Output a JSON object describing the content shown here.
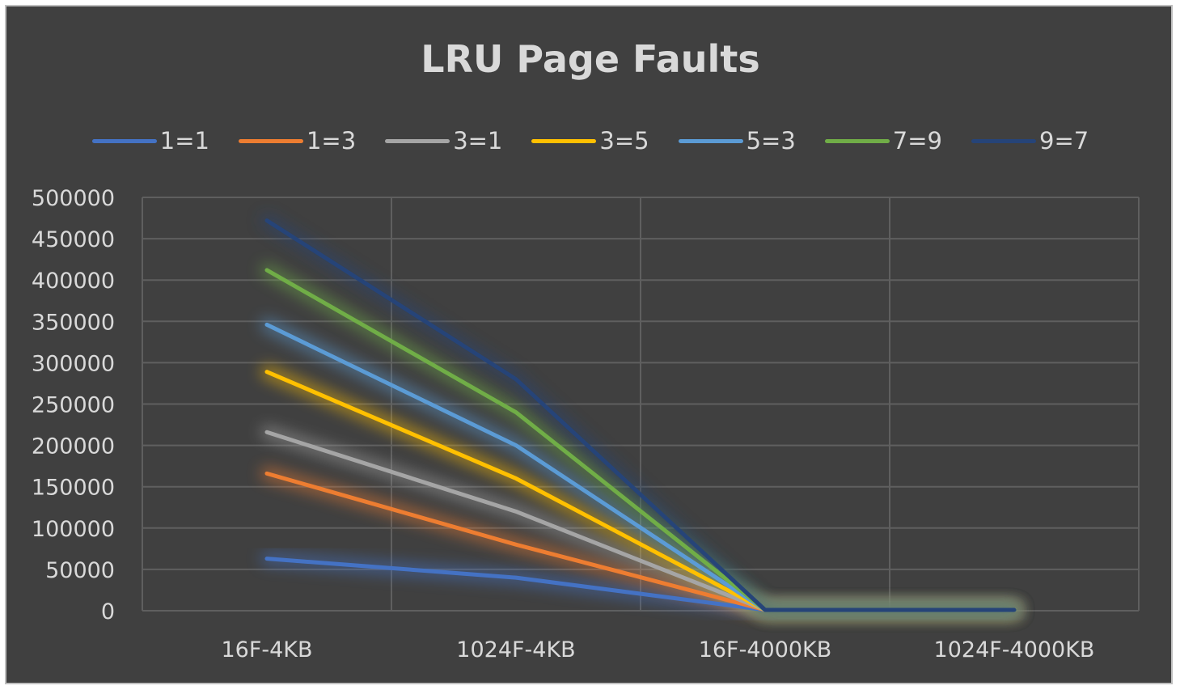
{
  "chart_data": {
    "type": "line",
    "title": "LRU Page Faults",
    "xlabel": "",
    "ylabel": "",
    "categories": [
      "16F-4KB",
      "1024F-4KB",
      "16F-4000KB",
      "1024F-4000KB"
    ],
    "ylim": [
      0,
      500000
    ],
    "yticks": [
      0,
      50000,
      100000,
      150000,
      200000,
      250000,
      300000,
      350000,
      400000,
      450000,
      500000
    ],
    "grid": true,
    "legend_position": "top",
    "series": [
      {
        "name": "1=1",
        "color": "#4472c4",
        "values": [
          63000,
          40000,
          1000,
          1000
        ]
      },
      {
        "name": "1=3",
        "color": "#ed7d31",
        "values": [
          166000,
          80000,
          1000,
          1000
        ]
      },
      {
        "name": "3=1",
        "color": "#a5a5a5",
        "values": [
          216000,
          120000,
          1000,
          1000
        ]
      },
      {
        "name": "3=5",
        "color": "#ffc000",
        "values": [
          289000,
          160000,
          1000,
          1000
        ]
      },
      {
        "name": "5=3",
        "color": "#5b9bd5",
        "values": [
          346000,
          200000,
          1000,
          1000
        ]
      },
      {
        "name": "7=9",
        "color": "#70ad47",
        "values": [
          412000,
          240000,
          1000,
          1000
        ]
      },
      {
        "name": "9=7",
        "color": "#264478",
        "values": [
          472000,
          280000,
          1000,
          1000
        ]
      }
    ]
  }
}
